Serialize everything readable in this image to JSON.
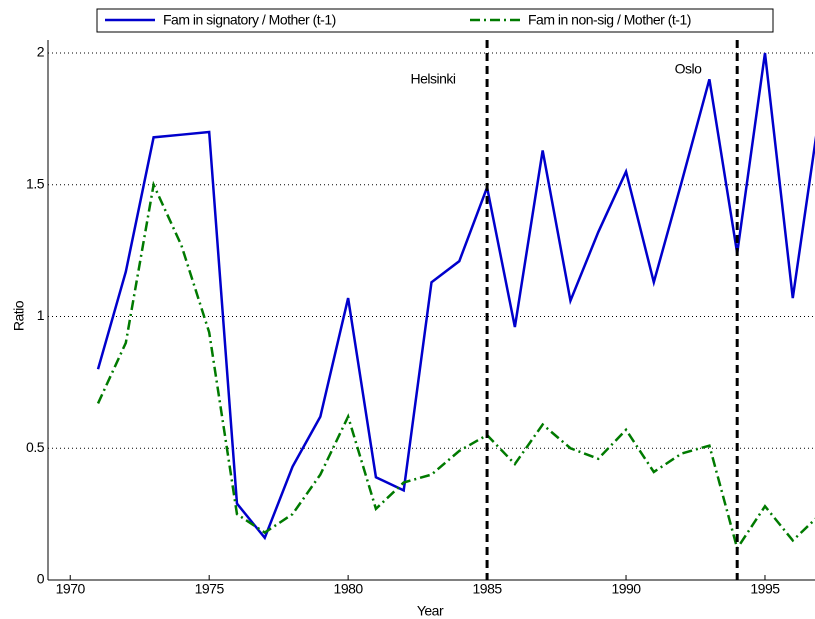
{
  "chart_data": {
    "type": "line",
    "x_label": "Year",
    "y_label": "Ratio",
    "x": [
      1971,
      1972,
      1973,
      1974,
      1975,
      1976,
      1977,
      1978,
      1979,
      1980,
      1981,
      1982,
      1983,
      1984,
      1985,
      1986,
      1987,
      1988,
      1989,
      1990,
      1991,
      1992,
      1993,
      1994,
      1995,
      1996,
      1997
    ],
    "series": [
      {
        "name": "Fam in signatory / Mother (t-1)",
        "color": "#0000cc",
        "dash": "none",
        "values": [
          0.8,
          1.17,
          1.68,
          1.69,
          1.7,
          0.29,
          0.16,
          0.43,
          0.62,
          1.07,
          0.39,
          0.34,
          1.13,
          1.21,
          1.49,
          0.96,
          1.63,
          1.06,
          1.32,
          1.55,
          1.13,
          1.51,
          1.9,
          1.24,
          2.0,
          1.07,
          1.8
        ]
      },
      {
        "name": "Fam in non-sig / Mother (t-1)",
        "color": "#007a00",
        "dash": "10 4 2 4",
        "values": [
          0.67,
          0.9,
          1.5,
          1.27,
          0.94,
          0.25,
          0.18,
          0.25,
          0.4,
          0.62,
          0.27,
          0.37,
          0.4,
          0.49,
          0.55,
          0.44,
          0.59,
          0.5,
          0.46,
          0.57,
          0.41,
          0.48,
          0.51,
          0.12,
          0.28,
          0.15,
          0.25
        ]
      }
    ],
    "xlim": [
      1969.2,
      1996.8
    ],
    "xticks": [
      1970,
      1975,
      1980,
      1985,
      1990,
      1995
    ],
    "ylim": [
      0,
      2
    ],
    "yticks": [
      0,
      0.5,
      1,
      1.5,
      2
    ],
    "grid": true,
    "vlines": [
      {
        "x": 1985,
        "label": "Helsinki"
      },
      {
        "x": 1994,
        "label": "Oslo"
      }
    ]
  }
}
